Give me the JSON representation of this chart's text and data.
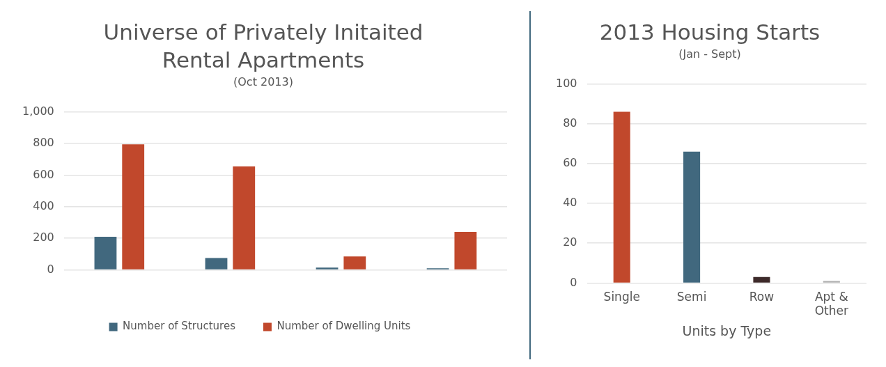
{
  "chart_data": [
    {
      "type": "bar",
      "title": "Universe of Privately Initaited Rental Apartments",
      "subtitle": "(Oct 2013)",
      "categories": [
        null,
        null,
        null,
        null
      ],
      "series": [
        {
          "name": "Number of Structures",
          "color": "#41687e",
          "values": [
            210,
            75,
            15,
            10
          ]
        },
        {
          "name": "Number of Dwelling Units",
          "color": "#c1482c",
          "values": [
            795,
            655,
            85,
            240
          ]
        }
      ],
      "ylim": [
        0,
        1000
      ],
      "yticks": [
        0,
        {
          "value": 200,
          "label": "200"
        },
        400,
        600,
        800,
        {
          "value": 1000,
          "label": "1,000"
        }
      ],
      "grid": "y",
      "legend": "bottom"
    },
    {
      "type": "bar",
      "title": "2013 Housing Starts",
      "subtitle": "(Jan - Sept)",
      "xlabel": "Units by Type",
      "categories": [
        "Single",
        "Semi",
        "Row",
        "Apt & Other"
      ],
      "values": [
        86,
        66,
        3,
        1
      ],
      "colors": [
        "#c1482c",
        "#41687e",
        "#3d2a2a",
        "#b0b0b0"
      ],
      "ylim": [
        0,
        100
      ],
      "yticks": [
        0,
        20,
        40,
        60,
        80,
        100
      ],
      "grid": "y",
      "legend": false
    }
  ]
}
